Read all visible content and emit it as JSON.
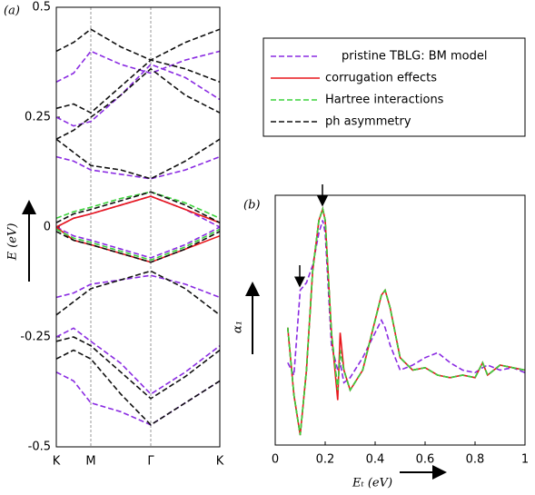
{
  "chart_data": [
    {
      "type": "bands",
      "panel_label": "(a)",
      "ylabel": "E (eV)",
      "x": [
        0,
        0.19,
        0.38,
        0.71,
        1.04,
        1.42,
        1.8
      ],
      "xlim": [
        0,
        1.8
      ],
      "xticks": [
        {
          "value": 0,
          "label": "K"
        },
        {
          "value": 0.38,
          "label": "M"
        },
        {
          "value": 1.04,
          "label": "Γ"
        },
        {
          "value": 1.8,
          "label": "K"
        }
      ],
      "ylim": [
        -0.5,
        0.5
      ],
      "yticks": [
        -0.5,
        -0.25,
        0,
        0.25,
        0.5
      ],
      "series": [
        {
          "name": "pristine TBLG: BM model",
          "color": "#8a2be2",
          "dash": "dashed",
          "values": [
            [
              0.0,
              0.02,
              0.03,
              0.05,
              0.07,
              0.04,
              0.0
            ],
            [
              0.0,
              -0.02,
              -0.03,
              -0.05,
              -0.07,
              -0.04,
              0.0
            ],
            [
              0.16,
              0.15,
              0.13,
              0.12,
              0.11,
              0.13,
              0.16
            ],
            [
              0.25,
              0.23,
              0.24,
              0.3,
              0.37,
              0.34,
              0.29
            ],
            [
              0.33,
              0.35,
              0.4,
              0.37,
              0.35,
              0.38,
              0.4
            ],
            [
              -0.16,
              -0.15,
              -0.13,
              -0.12,
              -0.11,
              -0.13,
              -0.16
            ],
            [
              -0.25,
              -0.23,
              -0.26,
              -0.31,
              -0.38,
              -0.33,
              -0.27
            ],
            [
              -0.33,
              -0.35,
              -0.4,
              -0.42,
              -0.45,
              -0.4,
              -0.35
            ]
          ]
        },
        {
          "name": "corrugation effects",
          "color": "#e8161b",
          "dash": "solid",
          "values": [
            [
              0.0,
              0.02,
              0.03,
              0.05,
              0.07,
              0.04,
              0.01
            ],
            [
              0.0,
              -0.03,
              -0.04,
              -0.06,
              -0.08,
              -0.05,
              -0.02
            ]
          ]
        },
        {
          "name": "Hartree interactions",
          "color": "#3cd33c",
          "dash": "dashed",
          "values": [
            [
              0.02,
              0.035,
              0.045,
              0.065,
              0.08,
              0.055,
              0.02
            ],
            [
              -0.005,
              -0.025,
              -0.035,
              -0.055,
              -0.075,
              -0.045,
              -0.005
            ]
          ]
        },
        {
          "name": "ph asymmetry",
          "color": "#111111",
          "dash": "dashed",
          "values": [
            [
              0.01,
              0.03,
              0.04,
              0.06,
              0.08,
              0.05,
              0.01
            ],
            [
              -0.01,
              -0.03,
              -0.04,
              -0.06,
              -0.08,
              -0.05,
              -0.01
            ],
            [
              0.2,
              0.17,
              0.14,
              0.13,
              0.11,
              0.15,
              0.2
            ],
            [
              0.2,
              0.22,
              0.25,
              0.3,
              0.36,
              0.3,
              0.26
            ],
            [
              0.27,
              0.28,
              0.26,
              0.32,
              0.38,
              0.36,
              0.33
            ],
            [
              0.4,
              0.42,
              0.45,
              0.41,
              0.38,
              0.42,
              0.45
            ],
            [
              -0.2,
              -0.17,
              -0.14,
              -0.12,
              -0.1,
              -0.14,
              -0.2
            ],
            [
              -0.26,
              -0.25,
              -0.27,
              -0.33,
              -0.39,
              -0.34,
              -0.28
            ],
            [
              -0.3,
              -0.28,
              -0.3,
              -0.38,
              -0.45,
              -0.4,
              -0.35
            ]
          ]
        }
      ]
    },
    {
      "type": "line",
      "panel_label": "(b)",
      "xlabel": "Eₜ (eV)",
      "ylabel": "α₁",
      "x": [
        0.05,
        0.075,
        0.1,
        0.125,
        0.15,
        0.175,
        0.19,
        0.2,
        0.225,
        0.25,
        0.26,
        0.275,
        0.3,
        0.35,
        0.4,
        0.425,
        0.44,
        0.46,
        0.5,
        0.55,
        0.6,
        0.65,
        0.7,
        0.75,
        0.8,
        0.83,
        0.85,
        0.9,
        0.95,
        1.0
      ],
      "xlim": [
        0,
        1
      ],
      "xticks": [
        0,
        0.2,
        0.4,
        0.6,
        0.8,
        1
      ],
      "ylim": [
        0,
        1
      ],
      "series": [
        {
          "color": "#8a2be2",
          "dash": "dashed",
          "values": [
            0.33,
            0.28,
            0.62,
            0.65,
            0.72,
            0.85,
            0.9,
            0.85,
            0.4,
            0.3,
            0.33,
            0.25,
            0.27,
            0.35,
            0.45,
            0.5,
            0.47,
            0.4,
            0.3,
            0.32,
            0.35,
            0.37,
            0.33,
            0.3,
            0.29,
            0.31,
            0.32,
            0.3,
            0.31,
            0.29
          ]
        },
        {
          "color": "#111111",
          "dash": "dashed",
          "values": [
            0.47,
            0.2,
            0.04,
            0.3,
            0.7,
            0.9,
            0.945,
            0.9,
            0.45,
            0.22,
            0.38,
            0.3,
            0.22,
            0.3,
            0.5,
            0.6,
            0.62,
            0.55,
            0.35,
            0.3,
            0.31,
            0.28,
            0.27,
            0.28,
            0.27,
            0.33,
            0.28,
            0.32,
            0.31,
            0.3
          ]
        },
        {
          "color": "#e8161b",
          "dash": "solid",
          "values": [
            0.47,
            0.2,
            0.04,
            0.3,
            0.7,
            0.9,
            0.945,
            0.9,
            0.45,
            0.18,
            0.45,
            0.3,
            0.22,
            0.3,
            0.5,
            0.6,
            0.62,
            0.55,
            0.35,
            0.3,
            0.31,
            0.28,
            0.27,
            0.28,
            0.27,
            0.33,
            0.28,
            0.32,
            0.31,
            0.3
          ]
        },
        {
          "color": "#3cd33c",
          "dash": "dashed",
          "values": [
            0.47,
            0.2,
            0.04,
            0.3,
            0.7,
            0.9,
            0.945,
            0.9,
            0.45,
            0.22,
            0.38,
            0.3,
            0.22,
            0.3,
            0.5,
            0.6,
            0.62,
            0.55,
            0.35,
            0.3,
            0.31,
            0.28,
            0.27,
            0.28,
            0.27,
            0.33,
            0.28,
            0.32,
            0.31,
            0.3
          ]
        }
      ]
    }
  ]
}
